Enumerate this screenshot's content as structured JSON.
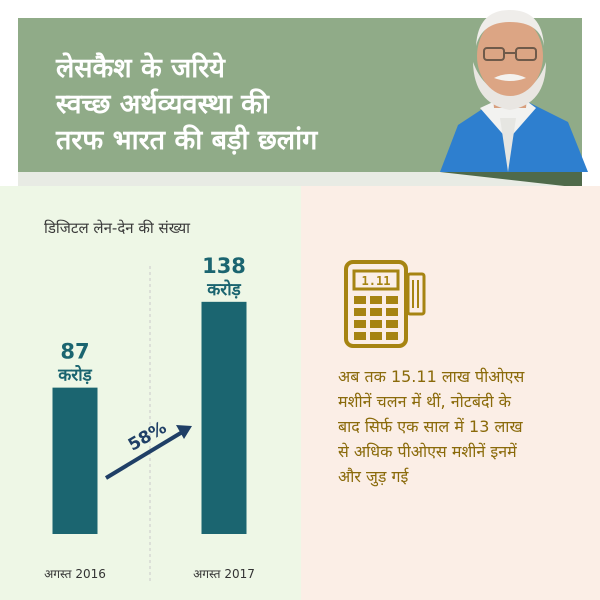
{
  "header": {
    "title_lines": [
      "लेसकैश के जरिये",
      "स्वच्छ अर्थव्यवस्था की",
      "तरफ भारत की बड़ी छलांग"
    ]
  },
  "colors": {
    "header_bg": "#90ab88",
    "bar": "#1b6570",
    "left_panel_bg": "#eef7e6",
    "right_panel_bg": "#fbeee6",
    "info_text": "#8a6a0a",
    "icon": "#a68412"
  },
  "chart_data": {
    "type": "bar",
    "title": "डिजिटल लेन-देन की संख्या",
    "categories": [
      "अगस्त 2016",
      "अगस्त 2017"
    ],
    "values": [
      87,
      138
    ],
    "value_labels": [
      [
        "87",
        "करोड़"
      ],
      [
        "138",
        "करोड़"
      ]
    ],
    "ylim": [
      0,
      170
    ],
    "grid": false,
    "annotation": {
      "text": "58%"
    }
  },
  "info": {
    "icon": "pos-machine-icon",
    "text_lines": [
      "अब तक 15.11 लाख पीओएस",
      "मशीनें चलन में थीं, नोटबंदी के",
      "बाद सिर्फ एक साल में 13 लाख",
      "से अधिक पीओएस मशीनें इनमें",
      "और जुड़ गई"
    ],
    "pos_display": "1.11"
  }
}
